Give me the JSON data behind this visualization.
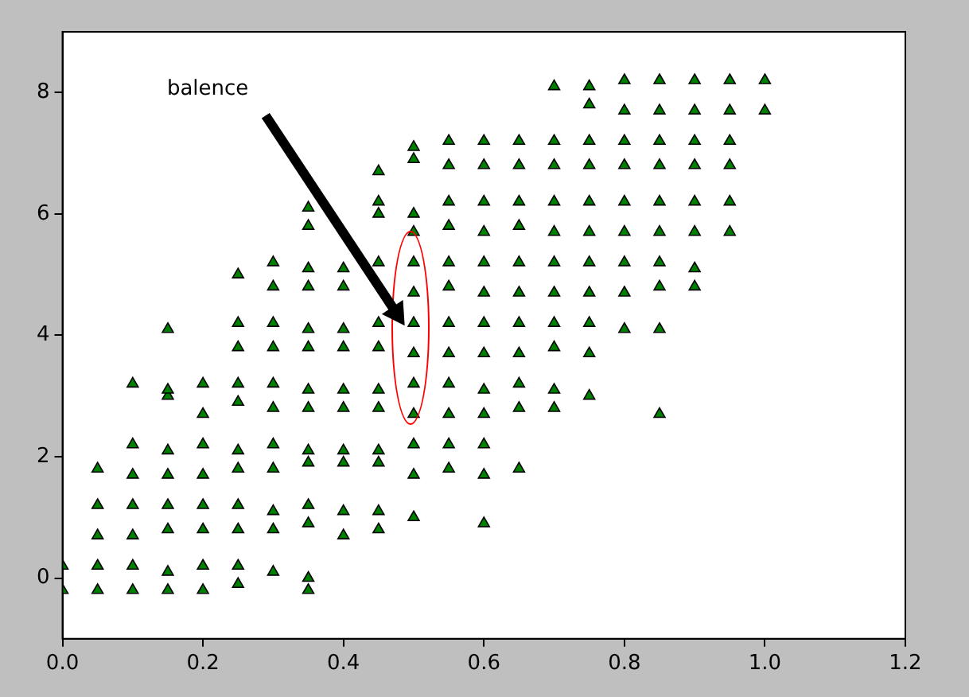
{
  "chart_data": {
    "type": "scatter",
    "xlim": [
      0,
      1.2
    ],
    "ylim": [
      -1,
      9
    ],
    "xticks": [
      {
        "value": 0,
        "label": "0.0"
      },
      {
        "value": 0.2,
        "label": "0.2"
      },
      {
        "value": 0.4,
        "label": "0.4"
      },
      {
        "value": 0.6,
        "label": "0.6"
      },
      {
        "value": 0.8,
        "label": "0.8"
      },
      {
        "value": 1,
        "label": "1.0"
      },
      {
        "value": 1.2,
        "label": "1.2"
      }
    ],
    "yticks": [
      0,
      2,
      4,
      6,
      8
    ],
    "grid": false,
    "legend": false,
    "marker": "triangle",
    "annotations": [
      "balence"
    ],
    "series": [
      {
        "color": "#008000",
        "x": [
          0,
          0,
          0.05,
          0.05,
          0.05,
          0.05,
          0.05,
          0.1,
          0.1,
          0.1,
          0.1,
          0.1,
          0.1,
          0.1,
          0.15,
          0.15,
          0.15,
          0.15,
          0.15,
          0.15,
          0.15,
          0.15,
          0.15,
          0.2,
          0.2,
          0.2,
          0.2,
          0.2,
          0.2,
          0.2,
          0.2,
          0.25,
          0.25,
          0.25,
          0.25,
          0.25,
          0.25,
          0.25,
          0.25,
          0.25,
          0.25,
          0.25,
          0.3,
          0.3,
          0.3,
          0.3,
          0.3,
          0.3,
          0.3,
          0.3,
          0.3,
          0.3,
          0.3,
          0.35,
          0.35,
          0.35,
          0.35,
          0.35,
          0.35,
          0.35,
          0.35,
          0.35,
          0.35,
          0.35,
          0.35,
          0.35,
          0.35,
          0.4,
          0.4,
          0.4,
          0.4,
          0.4,
          0.4,
          0.4,
          0.4,
          0.4,
          0.4,
          0.45,
          0.45,
          0.45,
          0.45,
          0.45,
          0.45,
          0.45,
          0.45,
          0.45,
          0.45,
          0.45,
          0.45,
          0.5,
          0.5,
          0.5,
          0.5,
          0.5,
          0.5,
          0.5,
          0.5,
          0.5,
          0.5,
          0.5,
          0.5,
          0.5,
          0.55,
          0.55,
          0.55,
          0.55,
          0.55,
          0.55,
          0.55,
          0.55,
          0.55,
          0.55,
          0.55,
          0.55,
          0.6,
          0.6,
          0.6,
          0.6,
          0.6,
          0.6,
          0.6,
          0.6,
          0.6,
          0.6,
          0.6,
          0.6,
          0.6,
          0.65,
          0.65,
          0.65,
          0.65,
          0.65,
          0.65,
          0.65,
          0.65,
          0.65,
          0.65,
          0.65,
          0.7,
          0.7,
          0.7,
          0.7,
          0.7,
          0.7,
          0.7,
          0.7,
          0.7,
          0.7,
          0.7,
          0.75,
          0.75,
          0.75,
          0.75,
          0.75,
          0.75,
          0.75,
          0.75,
          0.75,
          0.75,
          0.75,
          0.8,
          0.8,
          0.8,
          0.8,
          0.8,
          0.8,
          0.8,
          0.8,
          0.8,
          0.85,
          0.85,
          0.85,
          0.85,
          0.85,
          0.85,
          0.85,
          0.85,
          0.85,
          0.85,
          0.9,
          0.9,
          0.9,
          0.9,
          0.9,
          0.9,
          0.9,
          0.9,
          0.95,
          0.95,
          0.95,
          0.95,
          0.95,
          0.95,
          1,
          1
        ],
        "values": [
          -0.2,
          0.2,
          -0.2,
          0.2,
          0.7,
          1.2,
          1.8,
          -0.2,
          0.2,
          0.7,
          1.2,
          1.7,
          2.2,
          3.2,
          -0.2,
          0.1,
          0.8,
          1.2,
          1.7,
          2.1,
          3,
          3.1,
          4.1,
          -0.2,
          0.2,
          0.8,
          1.2,
          1.7,
          2.2,
          2.7,
          3.2,
          -0.1,
          0.2,
          0.8,
          1.2,
          1.8,
          2.1,
          2.9,
          3.2,
          3.8,
          4.2,
          5,
          0.1,
          0.8,
          1.1,
          1.8,
          2.2,
          2.8,
          3.2,
          3.8,
          4.2,
          4.8,
          5.2,
          -0.2,
          0,
          0.9,
          1.2,
          1.9,
          2.1,
          2.8,
          3.1,
          3.8,
          4.1,
          4.8,
          5.1,
          5.8,
          6.1,
          0.7,
          1.1,
          1.9,
          2.1,
          2.8,
          3.1,
          3.8,
          4.1,
          4.8,
          5.1,
          0.8,
          1.1,
          1.9,
          2.1,
          2.8,
          3.1,
          3.8,
          4.2,
          5.2,
          6,
          6.2,
          6.7,
          1,
          1.7,
          2.2,
          2.7,
          3.2,
          3.7,
          4.2,
          4.7,
          5.2,
          5.7,
          6,
          6.9,
          7.1,
          1.8,
          2.2,
          2.7,
          3.2,
          3.7,
          4.2,
          4.8,
          5.2,
          5.8,
          6.2,
          6.8,
          7.2,
          0.9,
          1.7,
          2.2,
          2.7,
          3.1,
          3.7,
          4.2,
          4.7,
          5.2,
          5.7,
          6.2,
          6.8,
          7.2,
          1.8,
          2.8,
          3.2,
          3.7,
          4.2,
          4.7,
          5.2,
          5.8,
          6.2,
          6.8,
          7.2,
          2.8,
          3.1,
          3.8,
          4.2,
          4.7,
          5.2,
          5.7,
          6.2,
          6.8,
          7.2,
          8.1,
          3,
          3.7,
          4.2,
          4.7,
          5.2,
          5.7,
          6.2,
          6.8,
          7.2,
          7.8,
          8.1,
          4.1,
          4.7,
          5.2,
          5.7,
          6.2,
          6.8,
          7.2,
          7.7,
          8.2,
          2.7,
          4.1,
          4.8,
          5.2,
          5.7,
          6.2,
          6.8,
          7.2,
          7.7,
          8.2,
          4.8,
          5.1,
          5.7,
          6.2,
          6.8,
          7.2,
          7.7,
          8.2,
          5.7,
          6.2,
          6.8,
          7.2,
          7.7,
          8.2,
          7.7,
          8.2
        ]
      }
    ]
  }
}
